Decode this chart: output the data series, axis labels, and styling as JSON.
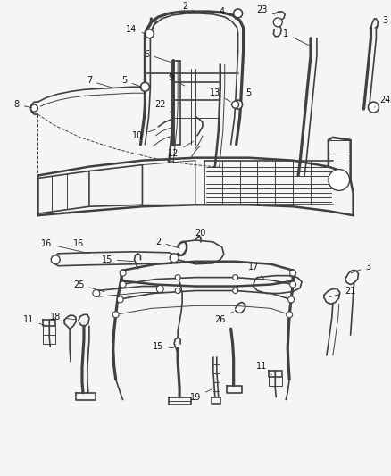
{
  "bg_color": "#f5f5f5",
  "line_color": "#404040",
  "label_color": "#111111",
  "fig_width": 4.38,
  "fig_height": 5.33,
  "dpi": 100
}
